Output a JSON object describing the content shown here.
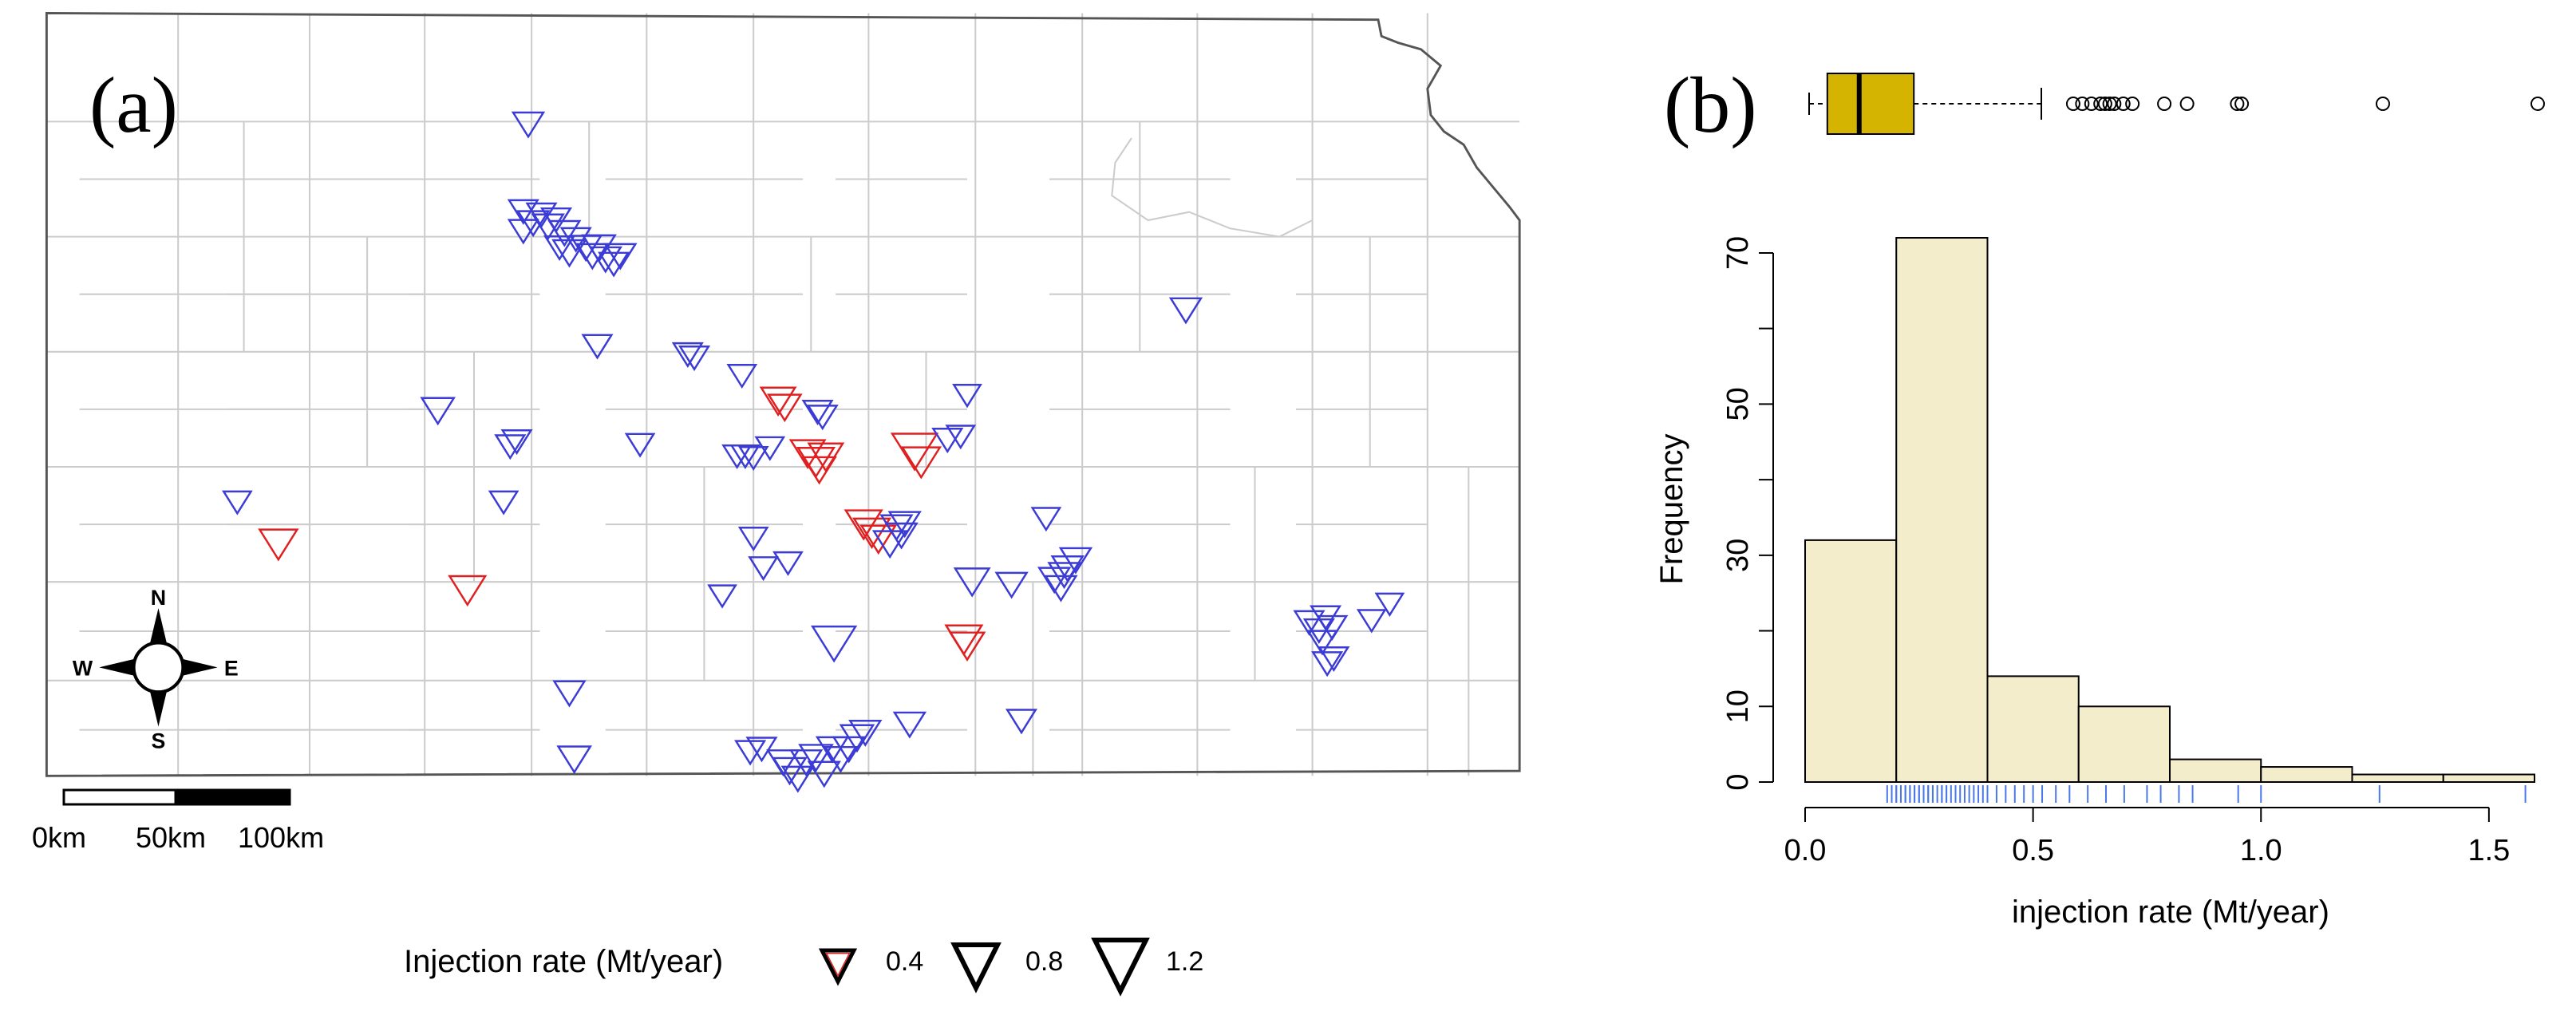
{
  "panel_a": {
    "label": "(a)",
    "legend": {
      "title": "Injection rate (Mt/year)",
      "entries": [
        "0.4",
        "0.8",
        "1.2"
      ]
    },
    "scalebar": {
      "labels": [
        "0km",
        "50km",
        "100km"
      ]
    },
    "compass": {
      "n": "N",
      "s": "S",
      "e": "E",
      "w": "W"
    },
    "colors": {
      "low": "#3b3bd6",
      "high": "#e02020",
      "border": "#555555",
      "county": "#cccccc"
    }
  },
  "panel_b": {
    "label": "(b)",
    "colors": {
      "box": "#d4b400",
      "hist": "#f3edcc",
      "rug": "#4a78e8"
    }
  },
  "chart_data": [
    {
      "type": "scatter",
      "title": "",
      "marker": "down-triangle",
      "size_variable": "injection rate (Mt/year)",
      "points": [
        {
          "x": 333,
          "y": 90,
          "r": 0.2,
          "c": "low"
        },
        {
          "x": 330,
          "y": 143,
          "r": 0.15,
          "c": "low"
        },
        {
          "x": 336,
          "y": 150,
          "r": 0.2,
          "c": "low"
        },
        {
          "x": 341,
          "y": 145,
          "r": 0.15,
          "c": "low"
        },
        {
          "x": 345,
          "y": 152,
          "r": 0.2,
          "c": "low"
        },
        {
          "x": 350,
          "y": 148,
          "r": 0.15,
          "c": "low"
        },
        {
          "x": 355,
          "y": 156,
          "r": 0.2,
          "c": "low"
        },
        {
          "x": 358,
          "y": 168,
          "r": 0.25,
          "c": "low"
        },
        {
          "x": 362,
          "y": 160,
          "r": 0.15,
          "c": "low"
        },
        {
          "x": 368,
          "y": 165,
          "r": 0.2,
          "c": "low"
        },
        {
          "x": 372,
          "y": 170,
          "r": 0.2,
          "c": "low"
        },
        {
          "x": 376,
          "y": 165,
          "r": 0.25,
          "c": "low"
        },
        {
          "x": 380,
          "y": 172,
          "r": 0.2,
          "c": "low"
        },
        {
          "x": 385,
          "y": 175,
          "r": 0.15,
          "c": "low"
        },
        {
          "x": 389,
          "y": 170,
          "r": 0.2,
          "c": "low"
        },
        {
          "x": 352,
          "y": 165,
          "r": 0.15,
          "c": "low"
        },
        {
          "x": 330,
          "y": 155,
          "r": 0.15,
          "c": "low"
        },
        {
          "x": 375,
          "y": 225,
          "r": 0.15,
          "c": "low"
        },
        {
          "x": 430,
          "y": 230,
          "r": 0.15,
          "c": "low"
        },
        {
          "x": 434,
          "y": 232,
          "r": 0.15,
          "c": "low"
        },
        {
          "x": 463,
          "y": 243,
          "r": 0.12,
          "c": "low"
        },
        {
          "x": 278,
          "y": 264,
          "r": 0.25,
          "c": "low"
        },
        {
          "x": 322,
          "y": 286,
          "r": 0.15,
          "c": "low"
        },
        {
          "x": 326,
          "y": 283,
          "r": 0.15,
          "c": "low"
        },
        {
          "x": 318,
          "y": 320,
          "r": 0.12,
          "c": "low"
        },
        {
          "x": 401,
          "y": 285,
          "r": 0.12,
          "c": "low"
        },
        {
          "x": 156,
          "y": 320,
          "r": 0.12,
          "c": "low"
        },
        {
          "x": 181,
          "y": 345,
          "r": 0.4,
          "c": "high"
        },
        {
          "x": 296,
          "y": 373,
          "r": 0.35,
          "c": "high"
        },
        {
          "x": 485,
          "y": 258,
          "r": 0.3,
          "c": "high"
        },
        {
          "x": 489,
          "y": 262,
          "r": 0.25,
          "c": "high"
        },
        {
          "x": 509,
          "y": 265,
          "r": 0.15,
          "c": "low"
        },
        {
          "x": 512,
          "y": 268,
          "r": 0.15,
          "c": "low"
        },
        {
          "x": 460,
          "y": 292,
          "r": 0.12,
          "c": "low"
        },
        {
          "x": 465,
          "y": 292,
          "r": 0.12,
          "c": "low"
        },
        {
          "x": 470,
          "y": 293,
          "r": 0.12,
          "c": "low"
        },
        {
          "x": 480,
          "y": 287,
          "r": 0.12,
          "c": "low"
        },
        {
          "x": 503,
          "y": 290,
          "r": 0.3,
          "c": "high"
        },
        {
          "x": 508,
          "y": 295,
          "r": 0.35,
          "c": "high"
        },
        {
          "x": 514,
          "y": 292,
          "r": 0.3,
          "c": "high"
        },
        {
          "x": 510,
          "y": 300,
          "r": 0.25,
          "c": "high"
        },
        {
          "x": 568,
          "y": 288,
          "r": 0.6,
          "c": "high"
        },
        {
          "x": 572,
          "y": 295,
          "r": 0.4,
          "c": "high"
        },
        {
          "x": 588,
          "y": 282,
          "r": 0.15,
          "c": "low"
        },
        {
          "x": 596,
          "y": 280,
          "r": 0.12,
          "c": "low"
        },
        {
          "x": 600,
          "y": 255,
          "r": 0.1,
          "c": "low"
        },
        {
          "x": 537,
          "y": 333,
          "r": 0.35,
          "c": "high"
        },
        {
          "x": 542,
          "y": 338,
          "r": 0.35,
          "c": "high"
        },
        {
          "x": 546,
          "y": 342,
          "r": 0.3,
          "c": "high"
        },
        {
          "x": 553,
          "y": 345,
          "r": 0.25,
          "c": "low"
        },
        {
          "x": 557,
          "y": 335,
          "r": 0.2,
          "c": "low"
        },
        {
          "x": 562,
          "y": 333,
          "r": 0.2,
          "c": "low"
        },
        {
          "x": 560,
          "y": 340,
          "r": 0.2,
          "c": "low"
        },
        {
          "x": 470,
          "y": 342,
          "r": 0.12,
          "c": "low"
        },
        {
          "x": 476,
          "y": 360,
          "r": 0.12,
          "c": "low"
        },
        {
          "x": 491,
          "y": 357,
          "r": 0.12,
          "c": "low"
        },
        {
          "x": 451,
          "y": 377,
          "r": 0.1,
          "c": "low"
        },
        {
          "x": 603,
          "y": 368,
          "r": 0.3,
          "c": "low"
        },
        {
          "x": 627,
          "y": 370,
          "r": 0.2,
          "c": "low"
        },
        {
          "x": 648,
          "y": 330,
          "r": 0.12,
          "c": "low"
        },
        {
          "x": 653,
          "y": 367,
          "r": 0.2,
          "c": "low"
        },
        {
          "x": 657,
          "y": 372,
          "r": 0.2,
          "c": "low"
        },
        {
          "x": 661,
          "y": 360,
          "r": 0.2,
          "c": "low"
        },
        {
          "x": 666,
          "y": 355,
          "r": 0.2,
          "c": "low"
        },
        {
          "x": 659,
          "y": 364,
          "r": 0.2,
          "c": "low"
        },
        {
          "x": 598,
          "y": 403,
          "r": 0.35,
          "c": "high"
        },
        {
          "x": 600,
          "y": 407,
          "r": 0.3,
          "c": "high"
        },
        {
          "x": 519,
          "y": 405,
          "r": 0.55,
          "c": "low"
        },
        {
          "x": 733,
          "y": 203,
          "r": 0.2,
          "c": "low"
        },
        {
          "x": 358,
          "y": 436,
          "r": 0.2,
          "c": "low"
        },
        {
          "x": 361,
          "y": 476,
          "r": 0.25,
          "c": "low"
        },
        {
          "x": 468,
          "y": 472,
          "r": 0.15,
          "c": "low"
        },
        {
          "x": 475,
          "y": 470,
          "r": 0.15,
          "c": "low"
        },
        {
          "x": 488,
          "y": 478,
          "r": 0.2,
          "c": "low"
        },
        {
          "x": 492,
          "y": 483,
          "r": 0.25,
          "c": "low"
        },
        {
          "x": 497,
          "y": 488,
          "r": 0.2,
          "c": "low"
        },
        {
          "x": 502,
          "y": 478,
          "r": 0.2,
          "c": "low"
        },
        {
          "x": 508,
          "y": 475,
          "r": 0.25,
          "c": "low"
        },
        {
          "x": 513,
          "y": 485,
          "r": 0.2,
          "c": "low"
        },
        {
          "x": 518,
          "y": 470,
          "r": 0.2,
          "c": "low"
        },
        {
          "x": 523,
          "y": 476,
          "r": 0.2,
          "c": "low"
        },
        {
          "x": 528,
          "y": 470,
          "r": 0.2,
          "c": "low"
        },
        {
          "x": 533,
          "y": 463,
          "r": 0.25,
          "c": "low"
        },
        {
          "x": 538,
          "y": 460,
          "r": 0.2,
          "c": "low"
        },
        {
          "x": 565,
          "y": 455,
          "r": 0.2,
          "c": "low"
        },
        {
          "x": 633,
          "y": 453,
          "r": 0.15,
          "c": "low"
        },
        {
          "x": 808,
          "y": 393,
          "r": 0.15,
          "c": "low"
        },
        {
          "x": 814,
          "y": 398,
          "r": 0.15,
          "c": "low"
        },
        {
          "x": 818,
          "y": 390,
          "r": 0.15,
          "c": "low"
        },
        {
          "x": 822,
          "y": 396,
          "r": 0.15,
          "c": "low"
        },
        {
          "x": 816,
          "y": 405,
          "r": 0.15,
          "c": "low"
        },
        {
          "x": 819,
          "y": 418,
          "r": 0.15,
          "c": "low"
        },
        {
          "x": 823,
          "y": 415,
          "r": 0.15,
          "c": "low"
        },
        {
          "x": 846,
          "y": 392,
          "r": 0.1,
          "c": "low"
        },
        {
          "x": 857,
          "y": 382,
          "r": 0.1,
          "c": "low"
        }
      ]
    },
    {
      "type": "bar",
      "title": "",
      "xlabel": "injection rate (Mt/year)",
      "ylabel": "Frequency",
      "bin_edges": [
        0.0,
        0.2,
        0.4,
        0.6,
        0.8,
        1.0,
        1.2,
        1.4,
        1.6
      ],
      "values": [
        32,
        72,
        14,
        10,
        3,
        2,
        1,
        1
      ],
      "xlim": [
        0.0,
        1.6
      ],
      "ylim": [
        0,
        72
      ],
      "xticks": [
        "0.0",
        "0.5",
        "1.0",
        "1.5"
      ],
      "yticks": [
        "0",
        "10",
        "30",
        "50",
        "70"
      ],
      "boxplot": {
        "min": 0.0,
        "q1": 0.04,
        "median": 0.11,
        "q3": 0.23,
        "whisker_high": 0.51,
        "outliers": [
          0.58,
          0.6,
          0.62,
          0.64,
          0.65,
          0.66,
          0.67,
          0.69,
          0.71,
          0.78,
          0.83,
          0.94,
          0.95,
          1.26,
          1.6
        ]
      },
      "rug": [
        0.18,
        0.19,
        0.2,
        0.2,
        0.21,
        0.21,
        0.22,
        0.22,
        0.23,
        0.23,
        0.24,
        0.24,
        0.25,
        0.25,
        0.26,
        0.26,
        0.27,
        0.27,
        0.28,
        0.28,
        0.29,
        0.3,
        0.3,
        0.31,
        0.31,
        0.32,
        0.33,
        0.34,
        0.35,
        0.36,
        0.37,
        0.38,
        0.39,
        0.4,
        0.42,
        0.44,
        0.46,
        0.48,
        0.5,
        0.52,
        0.55,
        0.58,
        0.62,
        0.66,
        0.7,
        0.75,
        0.78,
        0.82,
        0.85,
        0.95,
        1.0,
        1.26,
        1.58
      ]
    }
  ]
}
